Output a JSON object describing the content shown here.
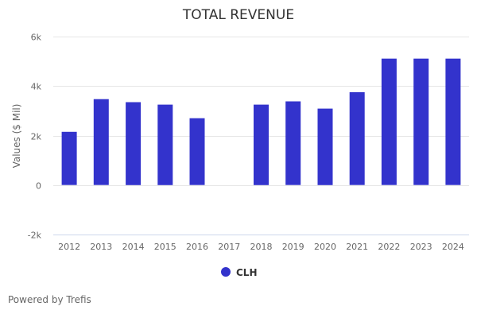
{
  "chart_data": {
    "type": "bar",
    "title": "TOTAL REVENUE",
    "xlabel": "",
    "ylabel": "Values ($ Mil)",
    "categories": [
      "2012",
      "2013",
      "2014",
      "2015",
      "2016",
      "2017",
      "2018",
      "2019",
      "2020",
      "2021",
      "2022",
      "2023",
      "2024"
    ],
    "series": [
      {
        "name": "CLH",
        "color": "#3333cc",
        "values": [
          2150,
          3470,
          3350,
          3250,
          2700,
          null,
          3250,
          3380,
          3090,
          3750,
          5110,
          5110,
          5110
        ]
      }
    ],
    "ylim": [
      -2000,
      6000
    ],
    "yticks": [
      {
        "value": 6000,
        "label": "6k"
      },
      {
        "value": 4000,
        "label": "4k"
      },
      {
        "value": 2000,
        "label": "2k"
      },
      {
        "value": 0,
        "label": "0"
      },
      {
        "value": -2000,
        "label": "-2k"
      }
    ],
    "grid": true,
    "legend": "bottom-center"
  },
  "credit": "Powered by Trefis"
}
